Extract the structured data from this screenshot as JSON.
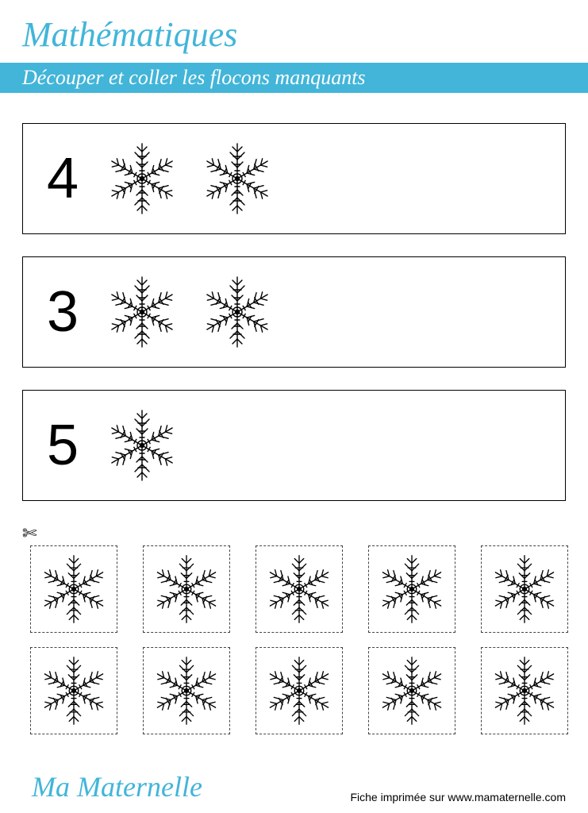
{
  "title": "Mathématiques",
  "instruction": "Découper et coller les flocons manquants",
  "accent_color": "#42b5d9",
  "snowflake_stroke": "#000000",
  "rows": [
    {
      "number": "4",
      "snowflakes_shown": 2
    },
    {
      "number": "3",
      "snowflakes_shown": 2
    },
    {
      "number": "5",
      "snowflakes_shown": 1
    }
  ],
  "cut_tiles_count": 10,
  "cut_tiles_per_row": 5,
  "scissors_glyph": "✄",
  "footer": {
    "brand": "Ma Maternelle",
    "credit": "Fiche imprimée sur www.mamaternelle.com"
  }
}
